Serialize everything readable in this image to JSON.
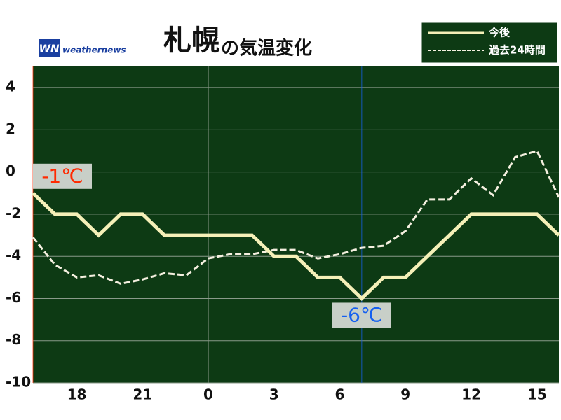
{
  "chart_data": {
    "type": "line",
    "title": "札幌",
    "subtitle": "の気温変化",
    "logo_mark": "WN",
    "logo": "weathernews",
    "x": [
      16,
      17,
      18,
      19,
      20,
      21,
      22,
      23,
      24,
      25,
      26,
      27,
      28,
      29,
      30,
      31,
      32,
      33,
      34,
      35,
      36,
      37,
      38,
      39,
      40
    ],
    "xlim": [
      16,
      40
    ],
    "xticks": [
      18,
      21,
      {
        "value": 24,
        "label": "0"
      },
      {
        "value": 27,
        "label": "3"
      },
      {
        "value": 30,
        "label": "6"
      },
      {
        "value": 33,
        "label": "9"
      },
      {
        "value": 36,
        "label": "12"
      },
      {
        "value": 39,
        "label": "15"
      }
    ],
    "ylim": [
      -10,
      5
    ],
    "yticks": [
      -10,
      -8,
      -6,
      -4,
      -2,
      0,
      2,
      4
    ],
    "grid": true,
    "background": "#0d3a14",
    "legend": "top-right",
    "series": [
      {
        "name": "今後",
        "color": "#f5f0b8",
        "style": "solid",
        "values": [
          -1,
          -2,
          -2,
          -3,
          -2,
          -2,
          -3,
          -3,
          -3,
          -3,
          -3,
          -4,
          -4,
          -5,
          -5,
          -6,
          -5,
          -5,
          -4,
          -3,
          -2,
          -2,
          -2,
          -2,
          -3
        ],
        "value_labels": [
          "-1℃",
          null,
          null,
          null,
          null,
          null,
          null,
          null,
          null,
          null,
          null,
          null,
          null,
          null,
          null,
          "-6℃",
          null,
          null,
          null,
          null,
          null,
          null,
          null,
          null,
          null
        ],
        "value_label_colors": [
          "#ff2a00",
          null,
          null,
          null,
          null,
          null,
          null,
          null,
          null,
          null,
          null,
          null,
          null,
          null,
          null,
          "#1560f0",
          null,
          null,
          null,
          null,
          null,
          null,
          null,
          null,
          null
        ]
      },
      {
        "name": "過去24時間",
        "color": "#f5f0e0",
        "style": "dashed",
        "values": [
          -3.1,
          -4.4,
          -5.0,
          -4.9,
          -5.3,
          -5.1,
          -4.8,
          -4.9,
          -4.1,
          -3.9,
          -3.9,
          -3.7,
          -3.7,
          -4.1,
          -3.9,
          -3.6,
          -3.5,
          -2.8,
          -1.3,
          -1.3,
          -0.3,
          -1.1,
          0.7,
          1.0,
          -1.2
        ]
      }
    ]
  }
}
